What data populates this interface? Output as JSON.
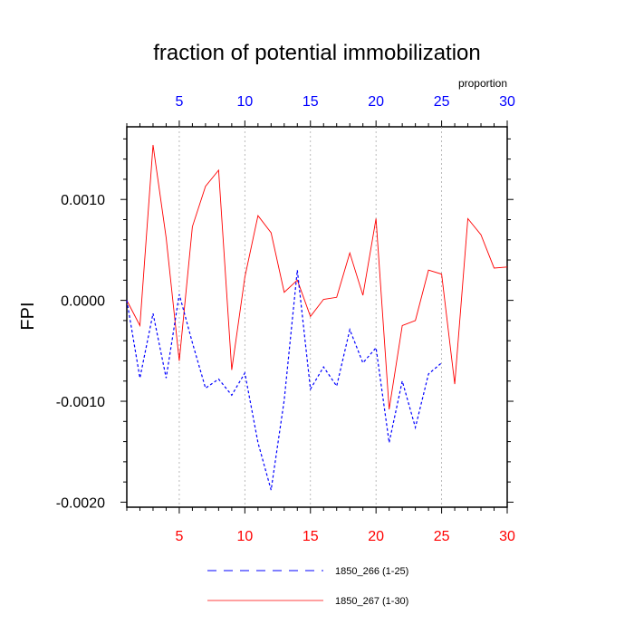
{
  "chart_data": {
    "type": "line",
    "title": "fraction of potential immobilization",
    "ylabel": "FPI",
    "top_axis_label": "proportion",
    "xlim": [
      1,
      30
    ],
    "ylim": [
      -0.00205,
      0.00172
    ],
    "grid": "vertical dashed at major x ticks",
    "bottom_axis_color": "#ff0000",
    "top_axis_color": "#0000ff",
    "x_ticks_bottom": [
      5,
      10,
      15,
      20,
      25,
      30
    ],
    "x_ticks_top": [
      5,
      10,
      15,
      20,
      25,
      30
    ],
    "y_ticks": [
      0.001,
      0.0,
      -0.001,
      -0.002
    ],
    "y_tick_labels": [
      "0.0010",
      "0.0000",
      "-0.0010",
      "-0.0020"
    ],
    "series": [
      {
        "name": "1850_266 (1-25)",
        "color": "#0000ff",
        "dash": "dashed",
        "x": [
          1,
          2,
          3,
          4,
          5,
          6,
          7,
          8,
          9,
          10,
          11,
          12,
          13,
          14,
          15,
          16,
          17,
          18,
          19,
          20,
          21,
          22,
          23,
          24,
          25
        ],
        "values": [
          0.0,
          -0.00077,
          -0.00013,
          -0.00077,
          6e-05,
          -0.00042,
          -0.00087,
          -0.00078,
          -0.00094,
          -0.00072,
          -0.00141,
          -0.00188,
          -0.00099,
          0.0003,
          -0.00088,
          -0.00066,
          -0.00085,
          -0.00029,
          -0.00062,
          -0.00047,
          -0.00141,
          -0.0008,
          -0.00126,
          -0.00073,
          -0.00062
        ]
      },
      {
        "name": "1850_267 (1-30)",
        "color": "#ff0000",
        "dash": "solid",
        "x": [
          1,
          2,
          3,
          4,
          5,
          6,
          7,
          8,
          9,
          10,
          11,
          12,
          13,
          14,
          15,
          16,
          17,
          18,
          19,
          20,
          21,
          22,
          23,
          24,
          25,
          26,
          27,
          28,
          29,
          30
        ],
        "values": [
          0.0,
          -0.00025,
          0.00154,
          0.00062,
          -0.0006,
          0.00073,
          0.00113,
          0.00129,
          -0.00069,
          0.00023,
          0.00084,
          0.00067,
          8e-05,
          0.0002,
          -0.00016,
          1e-05,
          3e-05,
          0.00047,
          5e-05,
          0.00081,
          -0.00108,
          -0.00025,
          -0.0002,
          0.0003,
          0.00026,
          -0.00083,
          0.00081,
          0.00065,
          0.00032,
          0.00033
        ]
      }
    ],
    "legend": {
      "placement": "bottom",
      "items": [
        {
          "label": "1850_266 (1-25)",
          "color": "#0000ff",
          "dash": "dashed"
        },
        {
          "label": "1850_267 (1-30)",
          "color": "#ff0000",
          "dash": "solid"
        }
      ]
    }
  }
}
